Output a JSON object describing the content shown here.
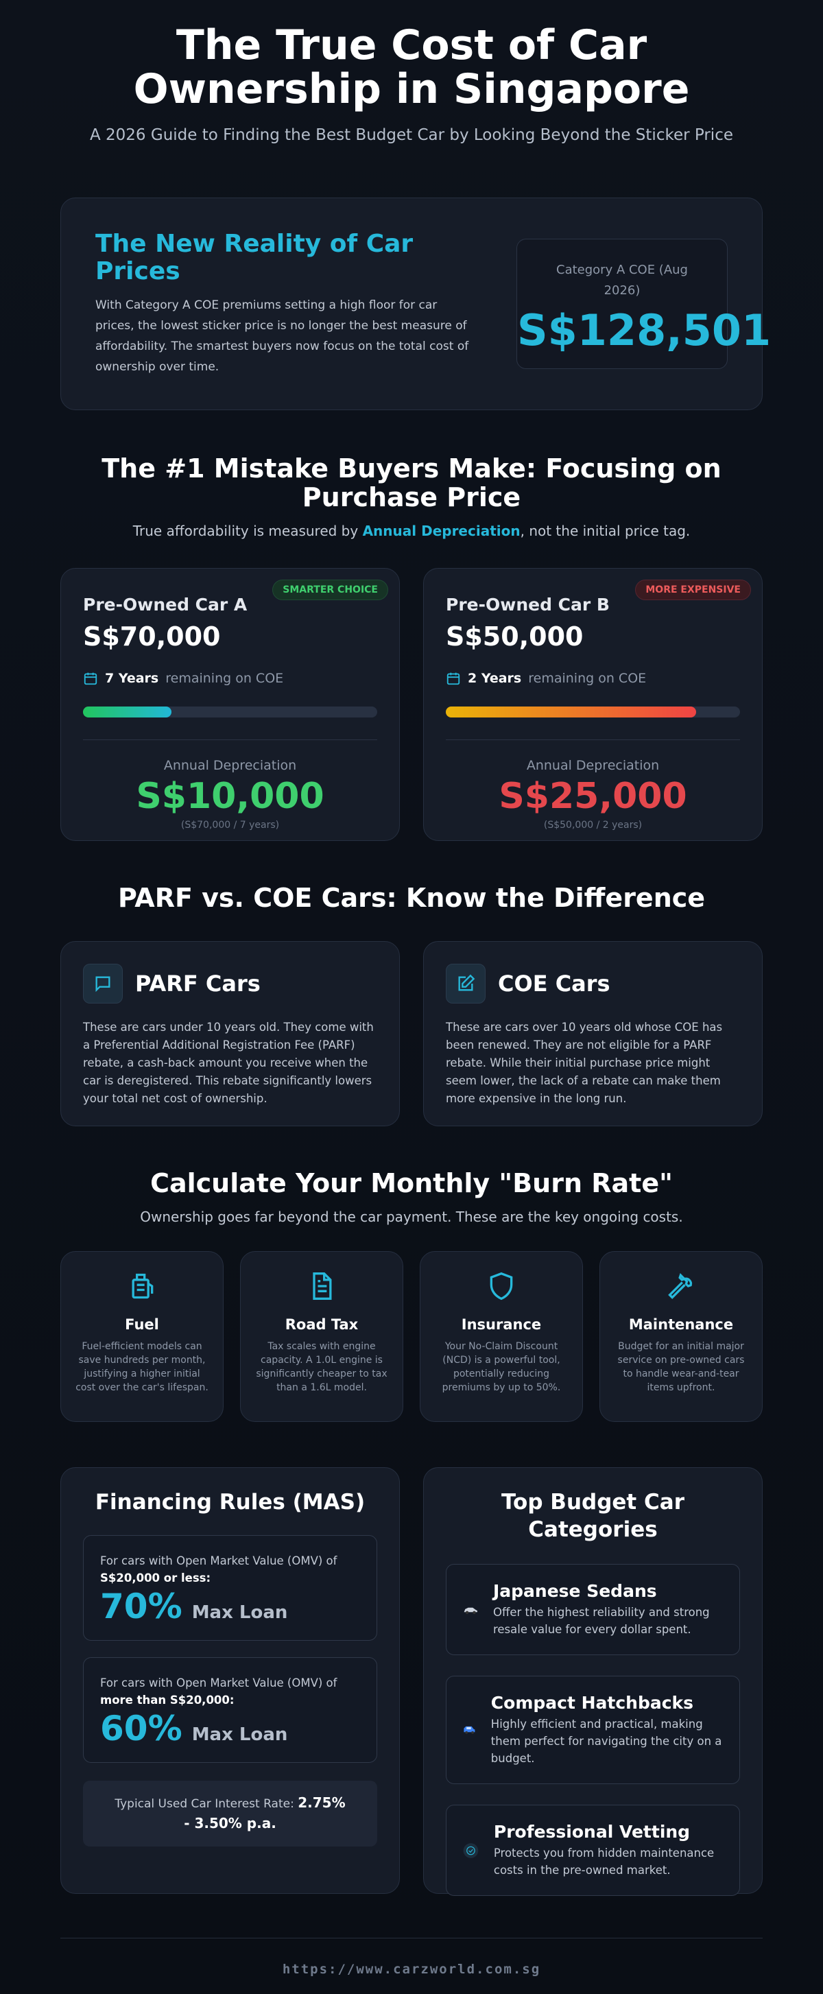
{
  "header": {
    "title": "The True Cost of Car Ownership in Singapore",
    "subtitle": "A 2026 Guide to Finding the Best Budget Car by Looking Beyond the Sticker Price"
  },
  "intro": {
    "heading": "The New Reality of Car Prices",
    "text": "With Category A COE premiums setting a high floor for car prices, the lowest sticker price is no longer the best measure of affordability. The smartest buyers now focus on the total cost of ownership over time.",
    "stat_label": "Category A COE (Aug 2026)",
    "stat_value": "S$128,501"
  },
  "mistake": {
    "heading": "The #1 Mistake Buyers Make: Focusing on Purchase Price",
    "subtitle_before": "True affordability is measured by ",
    "subtitle_highlight": "Annual Depreciation",
    "subtitle_after": ", not the initial price tag.",
    "cards": [
      {
        "badge": "SMARTER CHOICE",
        "name": "Pre-Owned Car A",
        "price": "S$70,000",
        "years": "7 Years",
        "years_suffix": "remaining on COE",
        "depreciation_label": "Annual Depreciation",
        "depreciation": "S$10,000",
        "calc": "(S$70,000 / 7 years)"
      },
      {
        "badge": "MORE EXPENSIVE",
        "name": "Pre-Owned Car B",
        "price": "S$50,000",
        "years": "2 Years",
        "years_suffix": "remaining on COE",
        "depreciation_label": "Annual Depreciation",
        "depreciation": "S$25,000",
        "calc": "(S$50,000 / 2 years)"
      }
    ]
  },
  "parf": {
    "heading": "PARF vs. COE Cars: Know the Difference",
    "cards": [
      {
        "title": "PARF Cars",
        "text": "These are cars under 10 years old. They come with a Preferential Additional Registration Fee (PARF) rebate, a cash-back amount you receive when the car is deregistered. This rebate significantly lowers your total net cost of ownership."
      },
      {
        "title": "COE Cars",
        "text": "These are cars over 10 years old whose COE has been renewed. They are not eligible for a PARF rebate. While their initial purchase price might seem lower, the lack of a rebate can make them more expensive in the long run."
      }
    ]
  },
  "burn": {
    "heading": "Calculate Your Monthly \"Burn Rate\"",
    "subtitle": "Ownership goes far beyond the car payment. These are the key ongoing costs.",
    "items": [
      {
        "title": "Fuel",
        "text": "Fuel-efficient models can save hundreds per month, justifying a higher initial cost over the car's lifespan."
      },
      {
        "title": "Road Tax",
        "text": "Tax scales with engine capacity. A 1.0L engine is significantly cheaper to tax than a 1.6L model."
      },
      {
        "title": "Insurance",
        "text": "Your No-Claim Discount (NCD) is a powerful tool, potentially reducing premiums by up to 50%."
      },
      {
        "title": "Maintenance",
        "text": "Budget for an initial major service on pre-owned cars to handle wear-and-tear items upfront."
      }
    ]
  },
  "financing": {
    "heading": "Financing Rules (MAS)",
    "rules": [
      {
        "text": "For cars with Open Market Value (OMV) of",
        "condition": "S$20,000 or less:",
        "percent": "70%",
        "suffix": "Max Loan"
      },
      {
        "text": "For cars with Open Market Value (OMV) of",
        "condition": "more than S$20,000:",
        "percent": "60%",
        "suffix": "Max Loan"
      }
    ],
    "rate_label": "Typical Used Car Interest Rate:",
    "rate_value": "2.75% - 3.50% p.a."
  },
  "categories": {
    "heading": "Top Budget Car Categories",
    "items": [
      {
        "title": "Japanese Sedans",
        "text": "Offer the highest reliability and strong resale value for every dollar spent."
      },
      {
        "title": "Compact Hatchbacks",
        "text": "Highly efficient and practical, making them perfect for navigating the city on a budget."
      },
      {
        "title": "Professional Vetting",
        "text": "Protects you from hidden maintenance costs in the pre-owned market."
      }
    ]
  },
  "footer": {
    "url": "https://www.carzworld.com.sg"
  }
}
